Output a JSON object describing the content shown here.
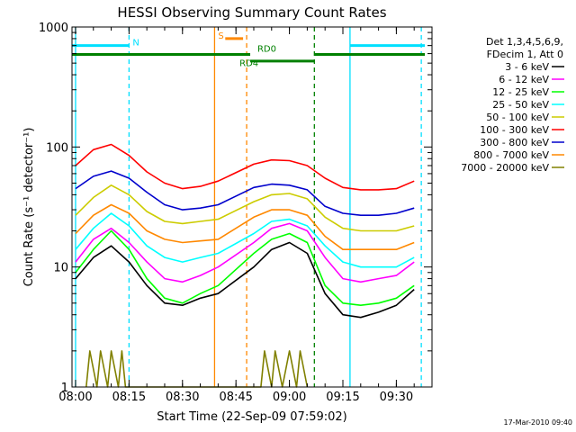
{
  "chart_data": {
    "type": "line",
    "title": "HESSI Observing Summary Count Rates",
    "xlabel": "Start Time (22-Sep-09 07:59:02)",
    "ylabel": "Count Rate (s⁻¹ detector⁻¹)",
    "x_scale": "time",
    "y_scale": "log",
    "xlim": [
      "07:59",
      "09:40"
    ],
    "ylim": [
      1,
      1000
    ],
    "x_ticks": [
      "08:00",
      "08:15",
      "08:30",
      "08:45",
      "09:00",
      "09:15",
      "09:30"
    ],
    "y_ticks": [
      "1",
      "10",
      "100",
      "1000"
    ],
    "legend_header": [
      "Det 1,3,4,5,6,9,",
      "FDecim 1, Att 0"
    ],
    "legend_position": "right",
    "grid": false,
    "series": [
      {
        "name": "3 - 6 keV",
        "color": "#000000",
        "points": [
          [
            "08:00",
            8
          ],
          [
            "08:05",
            12
          ],
          [
            "08:10",
            15
          ],
          [
            "08:15",
            11
          ],
          [
            "08:20",
            7
          ],
          [
            "08:25",
            5
          ],
          [
            "08:30",
            4.8
          ],
          [
            "08:35",
            5.5
          ],
          [
            "08:40",
            6
          ],
          [
            "08:50",
            10
          ],
          [
            "08:55",
            14
          ],
          [
            "09:00",
            16
          ],
          [
            "09:05",
            13
          ],
          [
            "09:10",
            6
          ],
          [
            "09:15",
            4
          ],
          [
            "09:20",
            3.8
          ],
          [
            "09:25",
            4.2
          ],
          [
            "09:30",
            4.8
          ],
          [
            "09:35",
            6.5
          ]
        ]
      },
      {
        "name": "6 - 12 keV",
        "color": "#ff00ff",
        "points": [
          [
            "08:00",
            11
          ],
          [
            "08:05",
            17
          ],
          [
            "08:10",
            21
          ],
          [
            "08:15",
            16
          ],
          [
            "08:20",
            11
          ],
          [
            "08:25",
            8
          ],
          [
            "08:30",
            7.5
          ],
          [
            "08:35",
            8.5
          ],
          [
            "08:40",
            10
          ],
          [
            "08:50",
            16
          ],
          [
            "08:55",
            21
          ],
          [
            "09:00",
            23
          ],
          [
            "09:05",
            20
          ],
          [
            "09:10",
            12
          ],
          [
            "09:15",
            8
          ],
          [
            "09:20",
            7.5
          ],
          [
            "09:25",
            8
          ],
          [
            "09:30",
            8.5
          ],
          [
            "09:35",
            11
          ]
        ]
      },
      {
        "name": "12 - 25 keV",
        "color": "#00ff00",
        "points": [
          [
            "08:00",
            9
          ],
          [
            "08:05",
            14
          ],
          [
            "08:10",
            20
          ],
          [
            "08:15",
            14
          ],
          [
            "08:20",
            8
          ],
          [
            "08:25",
            5.5
          ],
          [
            "08:30",
            5
          ],
          [
            "08:35",
            6
          ],
          [
            "08:40",
            7
          ],
          [
            "08:50",
            13
          ],
          [
            "08:55",
            17
          ],
          [
            "09:00",
            19
          ],
          [
            "09:05",
            16
          ],
          [
            "09:10",
            7
          ],
          [
            "09:15",
            5
          ],
          [
            "09:20",
            4.8
          ],
          [
            "09:25",
            5
          ],
          [
            "09:30",
            5.5
          ],
          [
            "09:35",
            7
          ]
        ]
      },
      {
        "name": "25 - 50 keV",
        "color": "#00ffff",
        "points": [
          [
            "08:00",
            14
          ],
          [
            "08:05",
            21
          ],
          [
            "08:10",
            28
          ],
          [
            "08:15",
            22
          ],
          [
            "08:20",
            15
          ],
          [
            "08:25",
            12
          ],
          [
            "08:30",
            11
          ],
          [
            "08:35",
            12
          ],
          [
            "08:40",
            13
          ],
          [
            "08:50",
            19
          ],
          [
            "08:55",
            24
          ],
          [
            "09:00",
            25
          ],
          [
            "09:05",
            22
          ],
          [
            "09:10",
            15
          ],
          [
            "09:15",
            11
          ],
          [
            "09:20",
            10
          ],
          [
            "09:25",
            10
          ],
          [
            "09:30",
            10
          ],
          [
            "09:35",
            12
          ]
        ]
      },
      {
        "name": "50 - 100 keV",
        "color": "#cccc00",
        "points": [
          [
            "08:00",
            27
          ],
          [
            "08:05",
            38
          ],
          [
            "08:10",
            48
          ],
          [
            "08:15",
            40
          ],
          [
            "08:20",
            29
          ],
          [
            "08:25",
            24
          ],
          [
            "08:30",
            23
          ],
          [
            "08:35",
            24
          ],
          [
            "08:40",
            25
          ],
          [
            "08:50",
            35
          ],
          [
            "08:55",
            40
          ],
          [
            "09:00",
            41
          ],
          [
            "09:05",
            37
          ],
          [
            "09:10",
            26
          ],
          [
            "09:15",
            21
          ],
          [
            "09:20",
            20
          ],
          [
            "09:25",
            20
          ],
          [
            "09:30",
            20
          ],
          [
            "09:35",
            22
          ]
        ]
      },
      {
        "name": "100 - 300 keV",
        "color": "#ff0000",
        "points": [
          [
            "08:00",
            70
          ],
          [
            "08:05",
            95
          ],
          [
            "08:10",
            105
          ],
          [
            "08:15",
            85
          ],
          [
            "08:20",
            62
          ],
          [
            "08:25",
            50
          ],
          [
            "08:30",
            45
          ],
          [
            "08:35",
            47
          ],
          [
            "08:40",
            52
          ],
          [
            "08:50",
            72
          ],
          [
            "08:55",
            78
          ],
          [
            "09:00",
            77
          ],
          [
            "09:05",
            70
          ],
          [
            "09:10",
            55
          ],
          [
            "09:15",
            46
          ],
          [
            "09:20",
            44
          ],
          [
            "09:25",
            44
          ],
          [
            "09:30",
            45
          ],
          [
            "09:35",
            52
          ]
        ]
      },
      {
        "name": "300 - 800 keV",
        "color": "#0000cc",
        "points": [
          [
            "08:00",
            45
          ],
          [
            "08:05",
            57
          ],
          [
            "08:10",
            63
          ],
          [
            "08:15",
            55
          ],
          [
            "08:20",
            42
          ],
          [
            "08:25",
            33
          ],
          [
            "08:30",
            30
          ],
          [
            "08:35",
            31
          ],
          [
            "08:40",
            33
          ],
          [
            "08:50",
            46
          ],
          [
            "08:55",
            49
          ],
          [
            "09:00",
            48
          ],
          [
            "09:05",
            44
          ],
          [
            "09:10",
            32
          ],
          [
            "09:15",
            28
          ],
          [
            "09:20",
            27
          ],
          [
            "09:25",
            27
          ],
          [
            "09:30",
            28
          ],
          [
            "09:35",
            31
          ]
        ]
      },
      {
        "name": "800 - 7000 keV",
        "color": "#ff8800",
        "points": [
          [
            "08:00",
            19
          ],
          [
            "08:05",
            27
          ],
          [
            "08:10",
            33
          ],
          [
            "08:15",
            28
          ],
          [
            "08:20",
            20
          ],
          [
            "08:25",
            17
          ],
          [
            "08:30",
            16
          ],
          [
            "08:35",
            16.5
          ],
          [
            "08:40",
            17
          ],
          [
            "08:50",
            26
          ],
          [
            "08:55",
            30
          ],
          [
            "09:00",
            30
          ],
          [
            "09:05",
            27
          ],
          [
            "09:10",
            18
          ],
          [
            "09:15",
            14
          ],
          [
            "09:20",
            14
          ],
          [
            "09:25",
            14
          ],
          [
            "09:30",
            14
          ],
          [
            "09:35",
            16
          ]
        ]
      },
      {
        "name": "7000 - 20000 keV",
        "color": "#808000",
        "points": [
          [
            "08:03",
            1
          ],
          [
            "08:04",
            2
          ],
          [
            "08:06",
            1
          ],
          [
            "08:07",
            2
          ],
          [
            "08:09",
            1
          ],
          [
            "08:10",
            2
          ],
          [
            "08:12",
            1
          ],
          [
            "08:13",
            2
          ],
          [
            "08:14",
            1
          ],
          [
            "08:52",
            1
          ],
          [
            "08:53",
            2
          ],
          [
            "08:55",
            1
          ],
          [
            "08:56",
            2
          ],
          [
            "08:58",
            1
          ],
          [
            "09:00",
            2
          ],
          [
            "09:02",
            1
          ],
          [
            "09:03",
            2
          ],
          [
            "09:05",
            1
          ]
        ]
      }
    ],
    "annotations": {
      "labels": [
        {
          "text": "N",
          "color": "#00e0ff",
          "x": "08:16",
          "y": 700
        },
        {
          "text": "S",
          "color": "#ff8800",
          "x": "08:40",
          "y": 800
        },
        {
          "text": "RD0",
          "color": "#008000",
          "x": "08:51",
          "y": 620
        },
        {
          "text": "RD4",
          "color": "#008000",
          "x": "08:46",
          "y": 470
        }
      ],
      "bars": [
        {
          "color": "#00e0ff",
          "y": 700,
          "segments": [
            [
              "07:59",
              "08:15"
            ],
            [
              "09:17",
              "09:38"
            ]
          ]
        },
        {
          "color": "#ff8800",
          "y": 800,
          "segments": [
            [
              "08:42",
              "08:47"
            ]
          ]
        },
        {
          "color": "#008000",
          "y": 590,
          "segments": [
            [
              "07:59",
              "08:49"
            ],
            [
              "09:07",
              "09:38"
            ]
          ]
        },
        {
          "color": "#008000",
          "y": 520,
          "segments": [
            [
              "08:49",
              "09:07"
            ]
          ]
        }
      ],
      "vlines": [
        {
          "x": "08:00",
          "color": "#00e0ff",
          "dashed": false
        },
        {
          "x": "08:15",
          "color": "#00e0ff",
          "dashed": true
        },
        {
          "x": "08:39",
          "color": "#ff8800",
          "dashed": false
        },
        {
          "x": "08:48",
          "color": "#ff8800",
          "dashed": true
        },
        {
          "x": "09:07",
          "color": "#008000",
          "dashed": true
        },
        {
          "x": "09:17",
          "color": "#00e0ff",
          "dashed": false
        },
        {
          "x": "09:37",
          "color": "#00e0ff",
          "dashed": true
        }
      ]
    },
    "footer": "17-Mar-2010 09:40"
  }
}
